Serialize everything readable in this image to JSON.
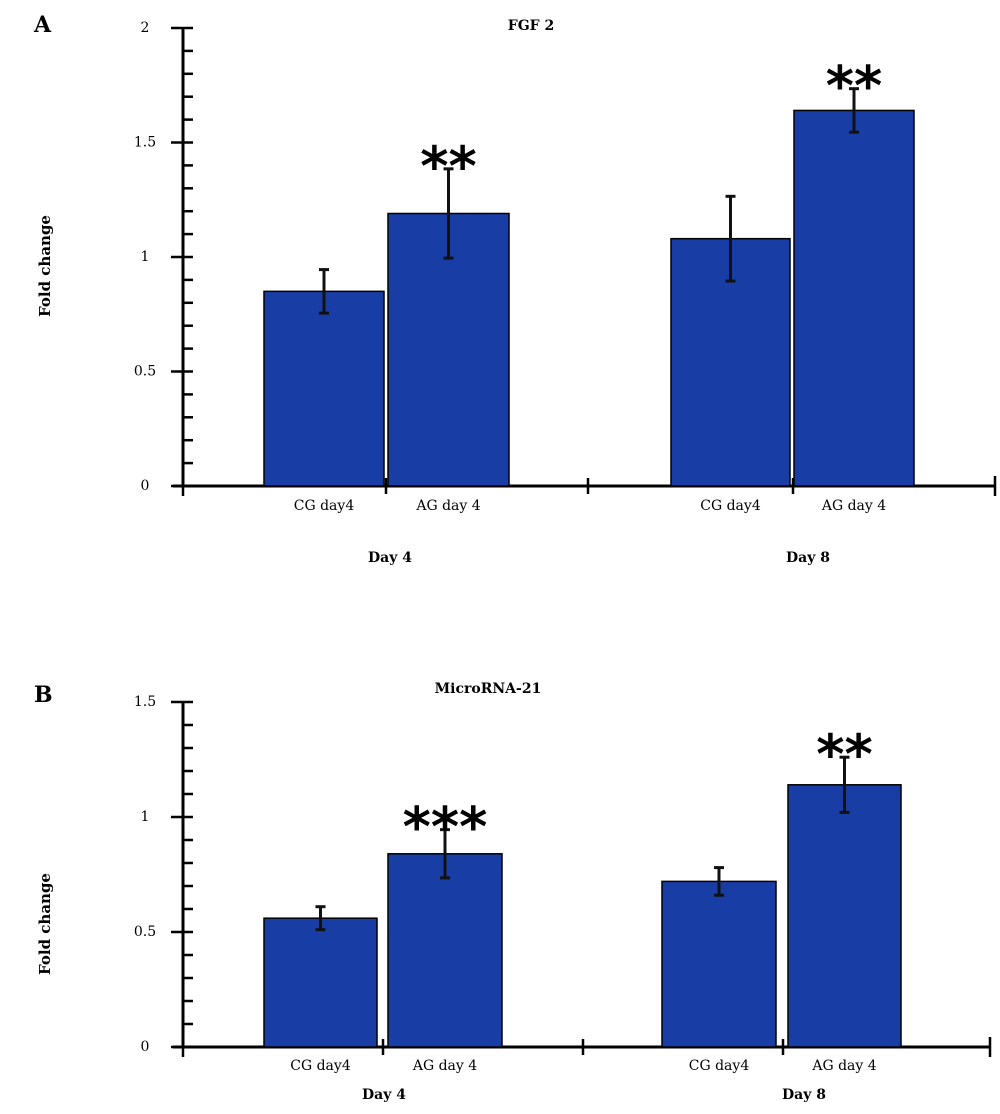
{
  "colors": {
    "bar": "#183ea6"
  },
  "chart_data": [
    {
      "type": "bar",
      "panel_label": "A",
      "title": "FGF 2",
      "ylabel": "Fold change",
      "ylim": [
        0,
        2
      ],
      "yticks": [
        0,
        0.5,
        1,
        1.5,
        2
      ],
      "ytick_labels": [
        "0",
        "0.5",
        "1",
        "1.5",
        "2"
      ],
      "groups": [
        "Day 4",
        "Day 8"
      ],
      "categories": [
        "CG day4",
        "AG day 4"
      ],
      "series": [
        {
          "values": [
            0.85,
            1.19
          ],
          "errors": [
            0.095,
            0.195
          ],
          "significance": [
            "",
            "**"
          ]
        },
        {
          "values": [
            1.08,
            1.64
          ],
          "errors": [
            0.185,
            0.095
          ],
          "significance": [
            "",
            "**"
          ]
        }
      ]
    },
    {
      "type": "bar",
      "panel_label": "B",
      "title": "MicroRNA-21",
      "ylabel": "Fold change",
      "ylim": [
        0,
        1.5
      ],
      "yticks": [
        0,
        0.5,
        1,
        1.5
      ],
      "ytick_labels": [
        "0",
        "0.5",
        "1",
        "1.5"
      ],
      "groups": [
        "Day 4",
        "Day 8"
      ],
      "categories": [
        "CG day4",
        "AG day 4"
      ],
      "series": [
        {
          "values": [
            0.56,
            0.84
          ],
          "errors": [
            0.05,
            0.105
          ],
          "significance": [
            "",
            "***"
          ]
        },
        {
          "values": [
            0.72,
            1.14
          ],
          "errors": [
            0.06,
            0.12
          ],
          "significance": [
            "",
            "**"
          ]
        }
      ]
    }
  ]
}
